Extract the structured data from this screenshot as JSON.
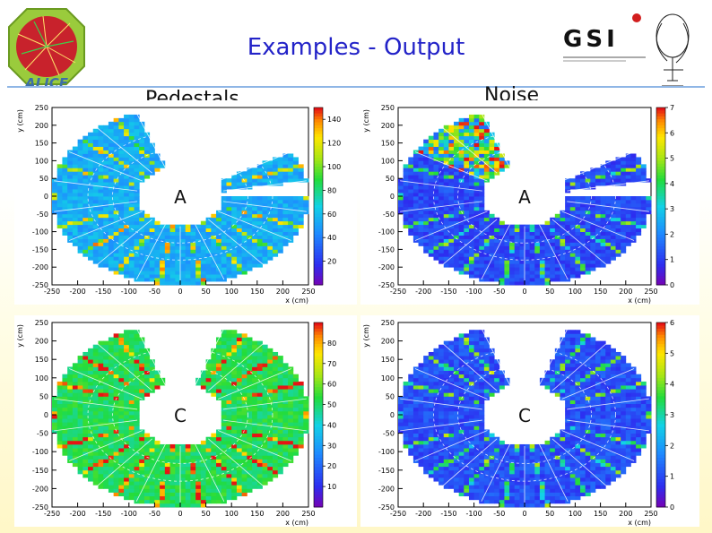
{
  "title": "Examples - Output",
  "labels": {
    "pedestals": "Pedestals",
    "noise": "Noise"
  },
  "logos": {
    "alice": "ALICE",
    "gsi": "GSI"
  },
  "colors": {
    "title": "#2323c8",
    "rule": "#8fb6e6"
  },
  "chart_data": [
    {
      "type": "heatmap",
      "panel": "pedestals-side-A",
      "side_label": "A",
      "xlabel": "x (cm)",
      "ylabel": "y (cm)",
      "xlim": [
        -250,
        250
      ],
      "ylim": [
        -250,
        250
      ],
      "x_ticks": [
        -250,
        -200,
        -150,
        -100,
        -50,
        0,
        50,
        100,
        150,
        200,
        250
      ],
      "y_ticks": [
        250,
        200,
        150,
        100,
        50,
        0,
        -50,
        -100,
        -150,
        -200,
        -250
      ],
      "z_ticks": [
        20,
        40,
        60,
        80,
        100,
        120,
        140
      ],
      "zlim": [
        0,
        150
      ],
      "dominant_value": 55,
      "inner_radius_cm": 85,
      "outer_radius_cm": 250,
      "sectors_present_deg": [
        [
          10,
          30
        ],
        [
          110,
          360
        ]
      ]
    },
    {
      "type": "heatmap",
      "panel": "noise-side-A",
      "side_label": "A",
      "xlabel": "x (cm)",
      "ylabel": "y (cm)",
      "xlim": [
        -250,
        250
      ],
      "ylim": [
        -250,
        250
      ],
      "x_ticks": [
        -250,
        -200,
        -150,
        -100,
        -50,
        0,
        50,
        100,
        150,
        200,
        250
      ],
      "y_ticks": [
        250,
        200,
        150,
        100,
        50,
        0,
        -50,
        -100,
        -150,
        -200,
        -250
      ],
      "z_ticks": [
        0,
        1,
        2,
        3,
        4,
        5,
        6,
        7
      ],
      "zlim": [
        0,
        7
      ],
      "dominant_value": 1.2,
      "hot_sector_deg": [
        110,
        150
      ],
      "hot_sector_value": 4.5,
      "inner_radius_cm": 85,
      "outer_radius_cm": 250,
      "sectors_present_deg": [
        [
          10,
          30
        ],
        [
          110,
          360
        ]
      ]
    },
    {
      "type": "heatmap",
      "panel": "pedestals-side-C",
      "side_label": "C",
      "xlabel": "x (cm)",
      "ylabel": "y (cm)",
      "xlim": [
        -250,
        250
      ],
      "ylim": [
        -250,
        250
      ],
      "x_ticks": [
        -250,
        -200,
        -150,
        -100,
        -50,
        0,
        50,
        100,
        150,
        200,
        250
      ],
      "y_ticks": [
        250,
        200,
        150,
        100,
        50,
        0,
        -50,
        -100,
        -150,
        -200,
        -250
      ],
      "z_ticks": [
        10,
        20,
        30,
        40,
        50,
        60,
        70,
        80
      ],
      "zlim": [
        0,
        90
      ],
      "dominant_value": 52,
      "inner_radius_cm": 85,
      "outer_radius_cm": 250,
      "sectors_present_deg": [
        [
          110,
          430
        ]
      ]
    },
    {
      "type": "heatmap",
      "panel": "noise-side-C",
      "side_label": "C",
      "xlabel": "x (cm)",
      "ylabel": "y (cm)",
      "xlim": [
        -250,
        250
      ],
      "ylim": [
        -250,
        250
      ],
      "x_ticks": [
        -250,
        -200,
        -150,
        -100,
        -50,
        0,
        50,
        100,
        150,
        200,
        250
      ],
      "y_ticks": [
        250,
        200,
        150,
        100,
        50,
        0,
        -50,
        -100,
        -150,
        -200,
        -250
      ],
      "z_ticks": [
        0,
        1,
        2,
        3,
        4,
        5,
        6
      ],
      "zlim": [
        0,
        6
      ],
      "dominant_value": 1.1,
      "inner_radius_cm": 85,
      "outer_radius_cm": 250,
      "sectors_present_deg": [
        [
          110,
          430
        ]
      ]
    }
  ]
}
